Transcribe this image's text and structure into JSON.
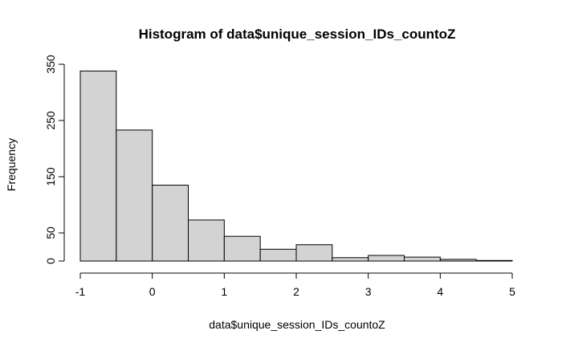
{
  "chart_data": {
    "type": "bar",
    "title": "Histogram of data$unique_session_IDs_countoZ",
    "xlabel": "data$unique_session_IDs_countoZ",
    "ylabel": "Frequency",
    "bin_edges": [
      -1,
      -0.5,
      0,
      0.5,
      1,
      1.5,
      2,
      2.5,
      3,
      3.5,
      4,
      4.5,
      5
    ],
    "values": [
      338,
      233,
      135,
      73,
      44,
      21,
      29,
      6,
      10,
      7,
      3,
      1
    ],
    "xlim": [
      -1,
      5
    ],
    "ylim": [
      0,
      350
    ],
    "x_ticks": [
      -1,
      0,
      1,
      2,
      3,
      4,
      5
    ],
    "x_tick_labels": [
      "-1",
      "0",
      "1",
      "2",
      "3",
      "4",
      "5"
    ],
    "y_ticks": [
      0,
      50,
      150,
      250,
      350
    ],
    "y_tick_labels": [
      "0",
      "50",
      "150",
      "250",
      "350"
    ],
    "bar_fill": "#d3d3d3",
    "grid": false
  }
}
